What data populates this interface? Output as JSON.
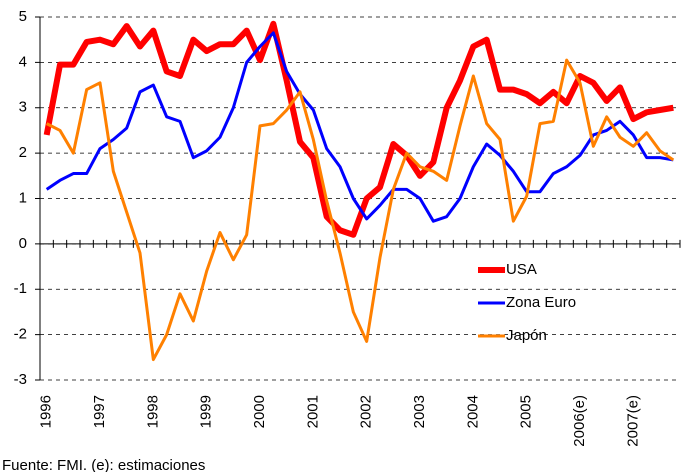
{
  "chart_data": {
    "type": "line",
    "categories": [
      "1996",
      null,
      null,
      null,
      "1997",
      null,
      null,
      null,
      "1998",
      null,
      null,
      null,
      "1999",
      null,
      null,
      null,
      "2000",
      null,
      null,
      null,
      "2001",
      null,
      null,
      null,
      "2002",
      null,
      null,
      null,
      "2003",
      null,
      null,
      null,
      "2004",
      null,
      null,
      null,
      "2005",
      null,
      null,
      null,
      "2006(e)",
      null,
      null,
      null,
      "2007(e)",
      null,
      null,
      null
    ],
    "series": [
      {
        "name": "USA",
        "color": "#ff0000",
        "width": 6,
        "values": [
          2.4,
          3.95,
          3.95,
          4.45,
          4.5,
          4.4,
          4.8,
          4.35,
          4.7,
          3.8,
          3.7,
          4.5,
          4.25,
          4.4,
          4.4,
          4.7,
          4.05,
          4.85,
          3.6,
          2.25,
          1.9,
          0.6,
          0.3,
          0.2,
          1.0,
          1.25,
          2.2,
          1.95,
          1.5,
          1.8,
          3.0,
          3.6,
          4.35,
          4.5,
          3.4,
          3.4,
          3.3,
          3.1,
          3.35,
          3.1,
          3.7,
          3.55,
          3.15,
          3.45,
          2.75,
          2.9,
          2.95,
          3.0
        ]
      },
      {
        "name": "Zona Euro",
        "color": "#0000ff",
        "width": 3,
        "values": [
          1.2,
          1.4,
          1.55,
          1.55,
          2.1,
          2.3,
          2.55,
          3.35,
          3.5,
          2.8,
          2.7,
          1.9,
          2.05,
          2.35,
          3.0,
          4.0,
          4.35,
          4.65,
          3.8,
          3.3,
          2.95,
          2.1,
          1.7,
          1.0,
          0.55,
          0.85,
          1.2,
          1.2,
          1.0,
          0.5,
          0.6,
          1.0,
          1.7,
          2.2,
          1.95,
          1.6,
          1.15,
          1.15,
          1.55,
          1.7,
          1.95,
          2.4,
          2.5,
          2.7,
          2.4,
          1.9,
          1.9,
          1.85
        ]
      },
      {
        "name": "Japón",
        "color": "#ff8000",
        "width": 3,
        "values": [
          2.65,
          2.5,
          2.0,
          3.4,
          3.55,
          1.6,
          0.7,
          -0.2,
          -2.55,
          -2.0,
          -1.1,
          -1.7,
          -0.6,
          0.25,
          -0.35,
          0.2,
          2.6,
          2.65,
          2.95,
          3.35,
          2.3,
          0.95,
          -0.2,
          -1.5,
          -2.15,
          -0.3,
          1.2,
          2.0,
          1.7,
          1.6,
          1.4,
          2.6,
          3.7,
          2.65,
          2.3,
          0.5,
          1.05,
          2.65,
          2.7,
          4.05,
          3.55,
          2.15,
          2.8,
          2.35,
          2.15,
          2.45,
          2.05,
          1.85
        ]
      }
    ],
    "ylim": [
      -3,
      5
    ],
    "yticks": [
      -3,
      -2,
      -1,
      0,
      1,
      2,
      3,
      4,
      5
    ],
    "grid": true,
    "legend": "right",
    "source": "Fuente: FMI. (e): estimaciones"
  }
}
